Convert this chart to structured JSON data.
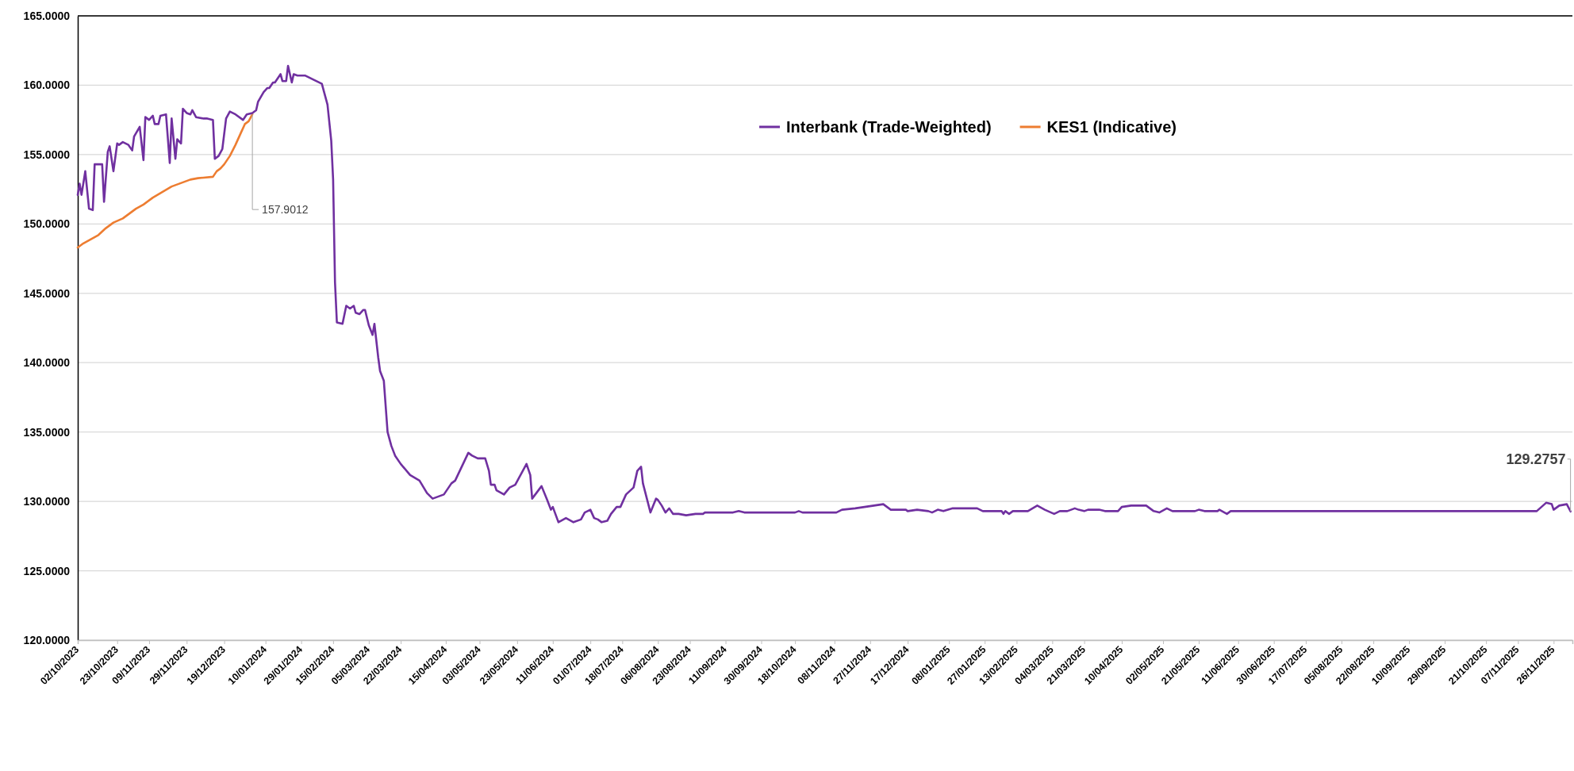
{
  "chart_data": {
    "type": "line",
    "xlim": [
      "2023-10-02",
      "2025-12-06"
    ],
    "xticks": [
      {
        "value": "2023-10-02",
        "label": "02/10/2023"
      },
      {
        "value": "2023-10-23",
        "label": "23/10/2023"
      },
      {
        "value": "2023-11-09",
        "label": "09/11/2023"
      },
      {
        "value": "2023-11-29",
        "label": "29/11/2023"
      },
      {
        "value": "2023-12-19",
        "label": "19/12/2023"
      },
      {
        "value": "2024-01-10",
        "label": "10/01/2024"
      },
      {
        "value": "2024-01-29",
        "label": "29/01/2024"
      },
      {
        "value": "2024-02-15",
        "label": "15/02/2024"
      },
      {
        "value": "2024-03-05",
        "label": "05/03/2024"
      },
      {
        "value": "2024-03-22",
        "label": "22/03/2024"
      },
      {
        "value": "2024-04-15",
        "label": "15/04/2024"
      },
      {
        "value": "2024-05-03",
        "label": "03/05/2024"
      },
      {
        "value": "2024-05-23",
        "label": "23/05/2024"
      },
      {
        "value": "2024-06-11",
        "label": "11/06/2024"
      },
      {
        "value": "2024-07-01",
        "label": "01/07/2024"
      },
      {
        "value": "2024-07-18",
        "label": "18/07/2024"
      },
      {
        "value": "2024-08-06",
        "label": "06/08/2024"
      },
      {
        "value": "2024-08-23",
        "label": "23/08/2024"
      },
      {
        "value": "2024-09-11",
        "label": "11/09/2024"
      },
      {
        "value": "2024-09-30",
        "label": "30/09/2024"
      },
      {
        "value": "2024-10-18",
        "label": "18/10/2024"
      },
      {
        "value": "2024-11-08",
        "label": "08/11/2024"
      },
      {
        "value": "2024-11-27",
        "label": "27/11/2024"
      },
      {
        "value": "2024-12-17",
        "label": "17/12/2024"
      },
      {
        "value": "2025-01-08",
        "label": "08/01/2025"
      },
      {
        "value": "2025-01-27",
        "label": "27/01/2025"
      },
      {
        "value": "2025-02-13",
        "label": "13/02/2025"
      },
      {
        "value": "2025-03-04",
        "label": "04/03/2025"
      },
      {
        "value": "2025-03-21",
        "label": "21/03/2025"
      },
      {
        "value": "2025-04-10",
        "label": "10/04/2025"
      },
      {
        "value": "2025-05-02",
        "label": "02/05/2025"
      },
      {
        "value": "2025-05-21",
        "label": "21/05/2025"
      },
      {
        "value": "2025-06-11",
        "label": "11/06/2025"
      },
      {
        "value": "2025-06-30",
        "label": "30/06/2025"
      },
      {
        "value": "2025-07-17",
        "label": "17/07/2025"
      },
      {
        "value": "2025-08-05",
        "label": "05/08/2025"
      },
      {
        "value": "2025-08-22",
        "label": "22/08/2025"
      },
      {
        "value": "2025-09-10",
        "label": "10/09/2025"
      },
      {
        "value": "2025-09-29",
        "label": "29/09/2025"
      },
      {
        "value": "2025-10-21",
        "label": "21/10/2025"
      },
      {
        "value": "2025-11-07",
        "label": "07/11/2025"
      },
      {
        "value": "2025-11-26",
        "label": "26/11/2025"
      }
    ],
    "ylim": [
      120,
      165
    ],
    "yticks": [
      {
        "value": 120,
        "label": "120.0000"
      },
      {
        "value": 125,
        "label": "125.0000"
      },
      {
        "value": 130,
        "label": "130.0000"
      },
      {
        "value": 135,
        "label": "135.0000"
      },
      {
        "value": 140,
        "label": "140.0000"
      },
      {
        "value": 145,
        "label": "145.0000"
      },
      {
        "value": 150,
        "label": "150.0000"
      },
      {
        "value": 155,
        "label": "155.0000"
      },
      {
        "value": 160,
        "label": "160.0000"
      },
      {
        "value": 165,
        "label": "165.0000"
      }
    ],
    "grid": "y",
    "legend": "top",
    "series": [
      {
        "name": "Interbank (Trade-Weighted)",
        "color": "#7030a0",
        "x": [
          "2023-10-02",
          "2023-10-03",
          "2023-10-04",
          "2023-10-06",
          "2023-10-08",
          "2023-10-10",
          "2023-10-11",
          "2023-10-15",
          "2023-10-16",
          "2023-10-18",
          "2023-10-19",
          "2023-10-21",
          "2023-10-23",
          "2023-10-24",
          "2023-10-26",
          "2023-10-29",
          "2023-10-31",
          "2023-11-01",
          "2023-11-04",
          "2023-11-06",
          "2023-11-07",
          "2023-11-09",
          "2023-11-11",
          "2023-11-12",
          "2023-11-14",
          "2023-11-15",
          "2023-11-18",
          "2023-11-20",
          "2023-11-21",
          "2023-11-23",
          "2023-11-24",
          "2023-11-26",
          "2023-11-27",
          "2023-11-29",
          "2023-12-01",
          "2023-12-02",
          "2023-12-04",
          "2023-12-08",
          "2023-12-10",
          "2023-12-13",
          "2023-12-14",
          "2023-12-16",
          "2023-12-18",
          "2023-12-20",
          "2023-12-22",
          "2023-12-25",
          "2023-12-29",
          "2023-12-31",
          "2024-01-03",
          "2024-01-05",
          "2024-01-06",
          "2024-01-09",
          "2024-01-11",
          "2024-01-12",
          "2024-01-14",
          "2024-01-15",
          "2024-01-18",
          "2024-01-19",
          "2024-01-21",
          "2024-01-22",
          "2024-01-24",
          "2024-01-25",
          "2024-01-27",
          "2024-01-31",
          "2024-02-09",
          "2024-02-12",
          "2024-02-14",
          "2024-02-15",
          "2024-02-16",
          "2024-02-17",
          "2024-02-20",
          "2024-02-22",
          "2024-02-24",
          "2024-02-26",
          "2024-02-27",
          "2024-02-29",
          "2024-03-02",
          "2024-03-03",
          "2024-03-05",
          "2024-03-07",
          "2024-03-08",
          "2024-03-10",
          "2024-03-11",
          "2024-03-13",
          "2024-03-15",
          "2024-03-17",
          "2024-03-19",
          "2024-03-22",
          "2024-03-27",
          "2024-04-01",
          "2024-04-05",
          "2024-04-08",
          "2024-04-12",
          "2024-04-14",
          "2024-04-18",
          "2024-04-20",
          "2024-04-27",
          "2024-04-29",
          "2024-05-02",
          "2024-05-06",
          "2024-05-08",
          "2024-05-09",
          "2024-05-11",
          "2024-05-12",
          "2024-05-16",
          "2024-05-19",
          "2024-05-22",
          "2024-05-28",
          "2024-05-30",
          "2024-05-31",
          "2024-06-05",
          "2024-06-08",
          "2024-06-10",
          "2024-06-11",
          "2024-06-14",
          "2024-06-18",
          "2024-06-22",
          "2024-06-26",
          "2024-06-28",
          "2024-07-01",
          "2024-07-03",
          "2024-07-05",
          "2024-07-07",
          "2024-07-10",
          "2024-07-12",
          "2024-07-15",
          "2024-07-17",
          "2024-07-20",
          "2024-07-24",
          "2024-07-26",
          "2024-07-28",
          "2024-07-29",
          "2024-08-02",
          "2024-08-05",
          "2024-08-06",
          "2024-08-08",
          "2024-08-10",
          "2024-08-12",
          "2024-08-14",
          "2024-08-17",
          "2024-08-21",
          "2024-08-26",
          "2024-08-30",
          "2024-08-31",
          "2024-09-15",
          "2024-09-18",
          "2024-09-21",
          "2024-10-18",
          "2024-10-20",
          "2024-10-22",
          "2024-11-09",
          "2024-11-12",
          "2024-11-19",
          "2024-11-24",
          "2024-11-29",
          "2024-12-04",
          "2024-12-05",
          "2024-12-08",
          "2024-12-16",
          "2024-12-17",
          "2024-12-22",
          "2024-12-28",
          "2024-12-30",
          "2025-01-02",
          "2025-01-05",
          "2025-01-10",
          "2025-01-19",
          "2025-01-23",
          "2025-01-26",
          "2025-02-05",
          "2025-02-06",
          "2025-02-07",
          "2025-02-09",
          "2025-02-11",
          "2025-02-19",
          "2025-02-24",
          "2025-02-28",
          "2025-03-05",
          "2025-03-08",
          "2025-03-12",
          "2025-03-16",
          "2025-03-18",
          "2025-03-21",
          "2025-03-23",
          "2025-03-29",
          "2025-04-01",
          "2025-04-08",
          "2025-04-10",
          "2025-04-15",
          "2025-04-23",
          "2025-04-27",
          "2025-04-30",
          "2025-05-04",
          "2025-05-07",
          "2025-05-19",
          "2025-05-21",
          "2025-05-24",
          "2025-05-31",
          "2025-06-01",
          "2025-06-05",
          "2025-06-07",
          "2025-11-17",
          "2025-11-22",
          "2025-11-25",
          "2025-11-26",
          "2025-11-29",
          "2025-12-03",
          "2025-12-05"
        ],
        "values": [
          152.1,
          152.9,
          152.1,
          153.8,
          151.1,
          151.0,
          154.3,
          154.3,
          151.6,
          155.2,
          155.6,
          153.8,
          155.8,
          155.7,
          155.9,
          155.7,
          155.3,
          156.3,
          157.0,
          154.6,
          157.7,
          157.5,
          157.8,
          157.2,
          157.2,
          157.8,
          157.9,
          154.4,
          157.6,
          154.7,
          156.1,
          155.8,
          158.3,
          158.0,
          157.9,
          158.2,
          157.7,
          157.6,
          157.6,
          157.5,
          154.7,
          154.9,
          155.4,
          157.6,
          158.1,
          157.9,
          157.5,
          157.9,
          158.0,
          158.2,
          158.8,
          159.5,
          159.8,
          159.8,
          160.2,
          160.2,
          160.8,
          160.3,
          160.3,
          161.4,
          160.2,
          160.8,
          160.7,
          160.7,
          160.1,
          158.6,
          156.0,
          153.2,
          145.8,
          142.9,
          142.8,
          144.1,
          143.9,
          144.1,
          143.6,
          143.5,
          143.8,
          143.8,
          142.7,
          142.0,
          142.8,
          140.4,
          139.4,
          138.7,
          135.0,
          134.0,
          133.3,
          132.7,
          131.9,
          131.5,
          130.6,
          130.2,
          130.4,
          130.5,
          131.3,
          131.5,
          133.5,
          133.3,
          133.1,
          133.1,
          132.2,
          131.2,
          131.2,
          130.8,
          130.5,
          131.0,
          131.2,
          132.7,
          131.9,
          130.2,
          131.1,
          130.1,
          129.4,
          129.6,
          128.5,
          128.8,
          128.5,
          128.7,
          129.2,
          129.4,
          128.8,
          128.7,
          128.5,
          128.6,
          129.1,
          129.6,
          129.6,
          130.5,
          131.0,
          132.2,
          132.5,
          131.3,
          129.2,
          130.2,
          130.1,
          129.7,
          129.2,
          129.5,
          129.1,
          129.1,
          129.0,
          129.1,
          129.1,
          129.2,
          129.2,
          129.3,
          129.2,
          129.2,
          129.3,
          129.2,
          129.2,
          129.4,
          129.5,
          129.6,
          129.7,
          129.8,
          129.7,
          129.4,
          129.4,
          129.3,
          129.4,
          129.3,
          129.2,
          129.4,
          129.3,
          129.5,
          129.5,
          129.5,
          129.3,
          129.3,
          129.1,
          129.3,
          129.1,
          129.3,
          129.3,
          129.7,
          129.4,
          129.1,
          129.3,
          129.3,
          129.5,
          129.4,
          129.3,
          129.4,
          129.4,
          129.3,
          129.3,
          129.6,
          129.7,
          129.7,
          129.3,
          129.2,
          129.5,
          129.3,
          129.3,
          129.4,
          129.3,
          129.3,
          129.4,
          129.1,
          129.3,
          129.3,
          129.9,
          129.8,
          129.4,
          129.7,
          129.8,
          129.2757
        ]
      },
      {
        "name": "KES1 (Indicative)",
        "color": "#ed7d31",
        "x": [
          "2023-10-02",
          "2023-10-05",
          "2023-10-09",
          "2023-10-13",
          "2023-10-17",
          "2023-10-21",
          "2023-10-26",
          "2023-10-29",
          "2023-11-02",
          "2023-11-06",
          "2023-11-11",
          "2023-11-16",
          "2023-11-21",
          "2023-11-25",
          "2023-12-01",
          "2023-12-05",
          "2023-12-13",
          "2023-12-15",
          "2023-12-17",
          "2023-12-19",
          "2023-12-22",
          "2023-12-25",
          "2023-12-28",
          "2023-12-30",
          "2024-01-01",
          "2024-01-03"
        ],
        "values": [
          148.3,
          148.6,
          148.9,
          149.2,
          149.7,
          150.1,
          150.4,
          150.7,
          151.1,
          151.4,
          151.9,
          152.3,
          152.7,
          152.9,
          153.2,
          153.3,
          153.4,
          153.8,
          154.0,
          154.3,
          154.9,
          155.7,
          156.6,
          157.2,
          157.4,
          157.9012
        ]
      }
    ],
    "annotations": [
      {
        "text": "157.9012",
        "x": "2024-01-03",
        "y": 157.9012
      },
      {
        "text": "129.2757",
        "x": "2025-12-05",
        "y": 129.2757
      }
    ]
  }
}
